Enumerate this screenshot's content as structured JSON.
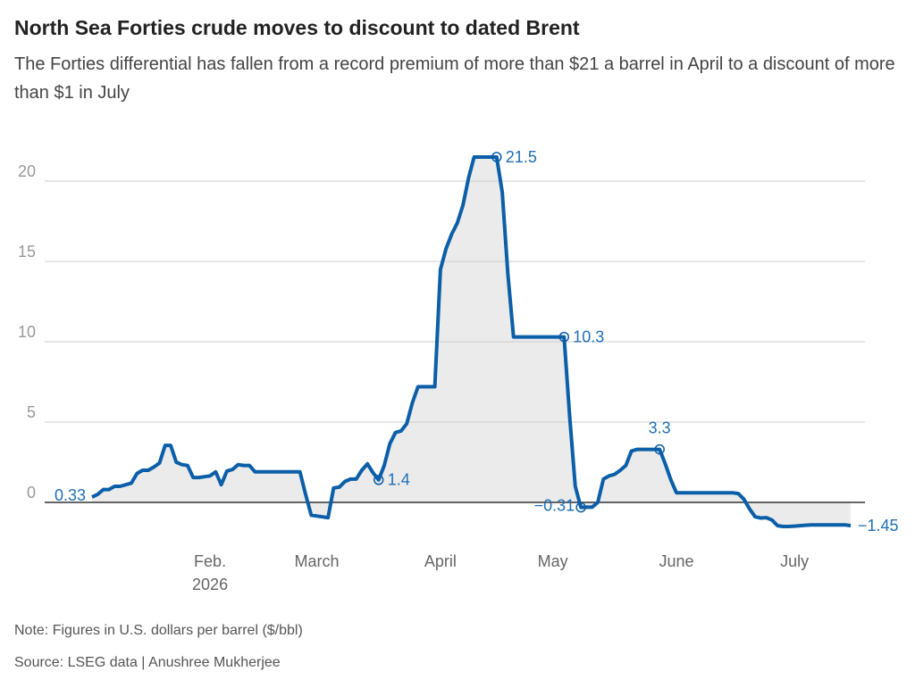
{
  "chart_data": {
    "type": "line",
    "title": "North Sea Forties crude moves to discount to dated Brent",
    "subtitle": "The Forties differential has fallen from a record premium of more than $21 a barrel in April to a discount of more than $1 in July",
    "note": "Note: Figures in U.S. dollars per barrel ($/bbl)",
    "source": "Source: LSEG data | Anushree Mukherjee",
    "color": "#0b5ea8",
    "area_color": "#ebebeb",
    "grid": true,
    "ylim": [
      -2.5,
      22.5
    ],
    "yticks": [
      0,
      5,
      10,
      15,
      20
    ],
    "categories": [
      null,
      null,
      null,
      null,
      null,
      null,
      null,
      null,
      null,
      null,
      null,
      null,
      null,
      null,
      null,
      null,
      null,
      null,
      null,
      null,
      null,
      "Feb.\n2026",
      null,
      null,
      null,
      null,
      null,
      null,
      null,
      null,
      null,
      null,
      null,
      null,
      null,
      null,
      null,
      null,
      null,
      null,
      "March",
      null,
      null,
      null,
      null,
      null,
      null,
      null,
      null,
      null,
      null,
      null,
      null,
      null,
      null,
      null,
      null,
      null,
      null,
      null,
      null,
      null,
      "April",
      null,
      null,
      null,
      null,
      null,
      null,
      null,
      null,
      null,
      null,
      null,
      null,
      null,
      null,
      null,
      null,
      null,
      null,
      null,
      "May",
      null,
      null,
      null,
      null,
      null,
      null,
      null,
      null,
      null,
      null,
      null,
      null,
      null,
      null,
      null,
      null,
      null,
      null,
      null,
      null,
      null,
      "June",
      null,
      null,
      null,
      null,
      null,
      null,
      null,
      null,
      null,
      null,
      null,
      null,
      null,
      null,
      null,
      null,
      null,
      null,
      null,
      null,
      "July",
      null,
      null,
      null,
      null,
      null,
      null,
      null,
      null,
      null,
      null
    ],
    "values": [
      0.33,
      0.5,
      0.8,
      0.8,
      1.0,
      1.0,
      1.1,
      1.2,
      1.8,
      2.0,
      2.0,
      2.2,
      2.45,
      3.55,
      3.55,
      2.5,
      2.35,
      2.3,
      1.55,
      1.55,
      1.6,
      1.65,
      1.9,
      1.1,
      1.95,
      2.05,
      2.35,
      2.3,
      2.3,
      1.9,
      1.9,
      1.9,
      1.9,
      1.9,
      1.9,
      1.9,
      1.9,
      1.9,
      0.5,
      -0.8,
      -0.85,
      -0.9,
      -0.95,
      0.9,
      0.95,
      1.3,
      1.45,
      1.45,
      2.0,
      2.4,
      1.85,
      1.4,
      2.3,
      3.65,
      4.35,
      4.45,
      4.9,
      6.2,
      7.2,
      7.2,
      7.2,
      7.2,
      14.5,
      15.8,
      16.7,
      17.4,
      18.5,
      20.2,
      21.5,
      21.5,
      21.5,
      21.5,
      21.5,
      19.3,
      14.2,
      10.3,
      10.3,
      10.3,
      10.3,
      10.3,
      10.3,
      10.3,
      10.3,
      10.3,
      10.3,
      5.3,
      1.0,
      -0.31,
      -0.3,
      -0.3,
      0.0,
      1.45,
      1.65,
      1.75,
      2.0,
      2.3,
      3.2,
      3.3,
      3.3,
      3.3,
      3.3,
      3.3,
      2.4,
      1.4,
      0.6,
      0.6,
      0.6,
      0.6,
      0.6,
      0.6,
      0.6,
      0.6,
      0.6,
      0.6,
      0.6,
      0.55,
      0.2,
      -0.4,
      -0.9,
      -0.97,
      -0.95,
      -1.1,
      -1.45,
      -1.5,
      -1.5,
      -1.48,
      -1.45,
      -1.42,
      -1.4,
      -1.4,
      -1.4,
      -1.4,
      -1.4,
      -1.4,
      -1.4,
      -1.45
    ],
    "value_labels": [
      "0.33",
      null,
      null,
      null,
      null,
      null,
      null,
      null,
      null,
      null,
      null,
      null,
      null,
      null,
      null,
      null,
      null,
      null,
      null,
      null,
      null,
      null,
      null,
      null,
      null,
      null,
      null,
      null,
      null,
      null,
      null,
      null,
      null,
      null,
      null,
      null,
      null,
      null,
      null,
      null,
      null,
      null,
      null,
      null,
      null,
      null,
      null,
      null,
      null,
      null,
      null,
      "1.4",
      null,
      null,
      null,
      null,
      null,
      null,
      null,
      null,
      null,
      null,
      null,
      null,
      null,
      null,
      null,
      null,
      null,
      null,
      null,
      null,
      "21.5",
      null,
      null,
      null,
      null,
      null,
      null,
      null,
      null,
      null,
      null,
      null,
      "10.3",
      null,
      null,
      "−0.31",
      null,
      null,
      null,
      null,
      null,
      null,
      null,
      null,
      null,
      null,
      null,
      null,
      null,
      "3.3",
      null,
      null,
      null,
      null,
      null,
      null,
      null,
      null,
      null,
      null,
      null,
      null,
      null,
      null,
      null,
      null,
      null,
      null,
      null,
      null,
      null,
      null,
      null,
      null,
      null,
      null,
      null,
      null,
      null,
      null,
      null,
      null,
      null,
      "−1.45"
    ]
  }
}
